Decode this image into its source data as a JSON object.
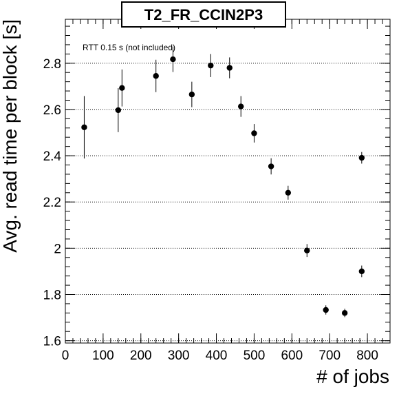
{
  "chart_data": {
    "type": "scatter",
    "title": "T2_FR_CCIN2P3",
    "xlabel": "# of jobs",
    "ylabel": "Avg. read time per block [s]",
    "annotation": "RTT 0.15 s (not included)",
    "xlim": [
      0,
      860
    ],
    "ylim": [
      1.59,
      2.99
    ],
    "xticks": [
      0,
      100,
      200,
      300,
      400,
      500,
      600,
      700,
      800
    ],
    "yticks": [
      1.6,
      1.8,
      2,
      2.2,
      2.4,
      2.6,
      2.8
    ],
    "grid": "horizontal dotted at y ticks",
    "points": [
      {
        "x": 50,
        "y": 2.523,
        "err": 0.135
      },
      {
        "x": 140,
        "y": 2.597,
        "err": 0.095
      },
      {
        "x": 150,
        "y": 2.693,
        "err": 0.08
      },
      {
        "x": 240,
        "y": 2.745,
        "err": 0.07
      },
      {
        "x": 285,
        "y": 2.817,
        "err": 0.055
      },
      {
        "x": 335,
        "y": 2.665,
        "err": 0.055
      },
      {
        "x": 385,
        "y": 2.79,
        "err": 0.05
      },
      {
        "x": 435,
        "y": 2.78,
        "err": 0.045
      },
      {
        "x": 465,
        "y": 2.613,
        "err": 0.045
      },
      {
        "x": 500,
        "y": 2.497,
        "err": 0.04
      },
      {
        "x": 545,
        "y": 2.354,
        "err": 0.035
      },
      {
        "x": 590,
        "y": 2.24,
        "err": 0.03
      },
      {
        "x": 640,
        "y": 1.99,
        "err": 0.028
      },
      {
        "x": 690,
        "y": 1.733,
        "err": 0.02
      },
      {
        "x": 740,
        "y": 1.72,
        "err": 0.018
      },
      {
        "x": 785,
        "y": 1.9,
        "err": 0.025
      },
      {
        "x": 785,
        "y": 2.391,
        "err": 0.025
      }
    ],
    "marker_color": "#000000"
  }
}
